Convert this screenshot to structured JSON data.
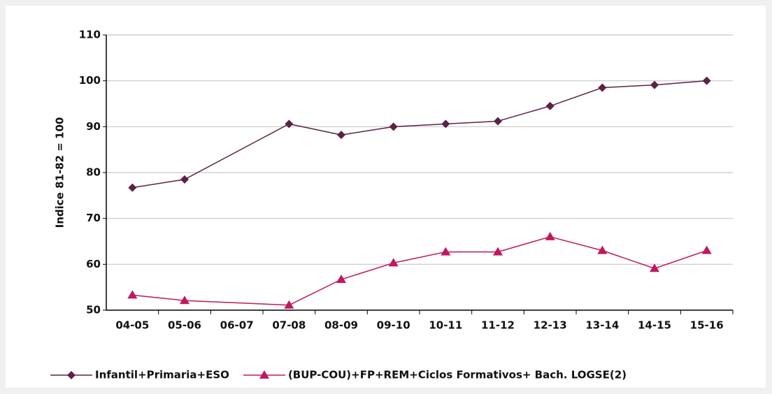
{
  "chart_data": {
    "type": "line",
    "y_label": "Indice 81-82 = 100",
    "categories": [
      "04-05",
      "05-06",
      "06-07",
      "07-08",
      "08-09",
      "09-10",
      "10-11",
      "11-12",
      "12-13",
      "13-14",
      "14-15",
      "15-16"
    ],
    "series": [
      {
        "name": "Infantil+Primaria+ESO",
        "color": "#5b2246",
        "marker": "diamond",
        "values": [
          76.7,
          78.5,
          null,
          90.6,
          88.2,
          90.0,
          90.6,
          91.2,
          94.5,
          98.5,
          99.1,
          100
        ]
      },
      {
        "name": "(BUP-COU)+FP+REM+Ciclos Formativos+ Bach. LOGSE(2)",
        "color": "#c0185e",
        "marker": "triangle",
        "values": [
          53.3,
          52.1,
          null,
          51.1,
          56.7,
          60.3,
          62.7,
          62.7,
          66.0,
          63.0,
          59.1,
          63.0
        ]
      }
    ],
    "ylim": [
      50,
      110
    ],
    "yticks": [
      50,
      60,
      70,
      80,
      90,
      100,
      110
    ],
    "grid": true,
    "span_gaps": true,
    "legend": "bottom"
  }
}
